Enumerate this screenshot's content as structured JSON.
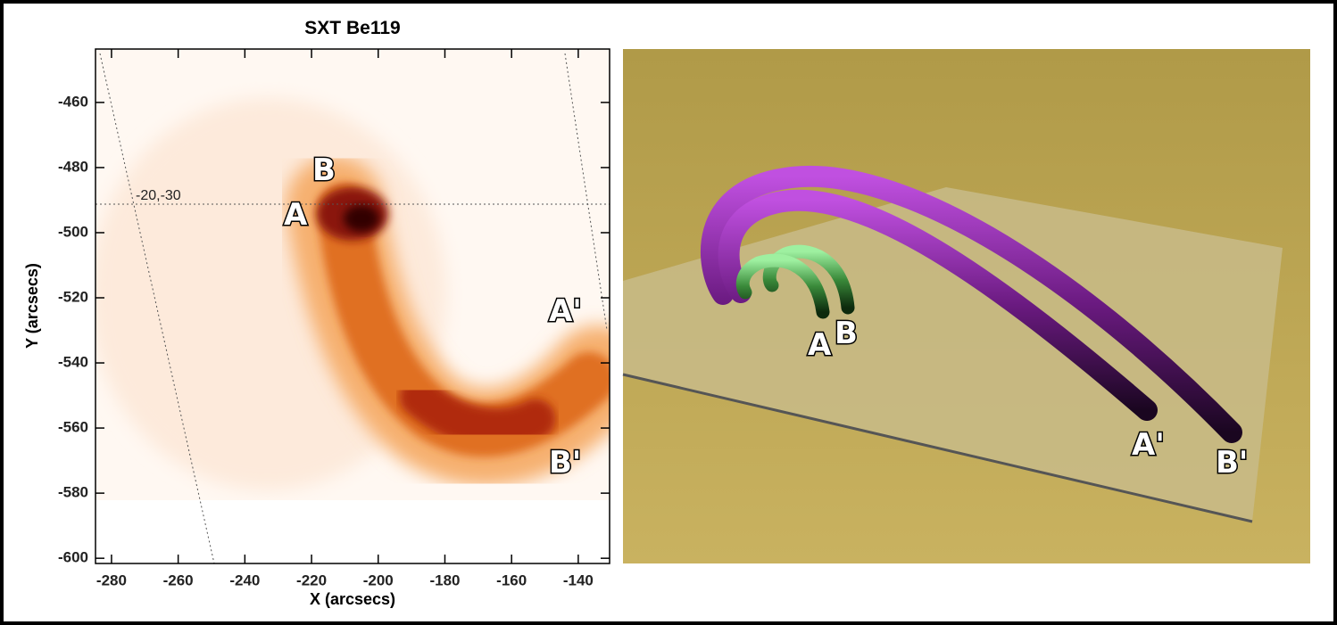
{
  "left_panel": {
    "title": "SXT Be119",
    "x_label": "X (arcsecs)",
    "y_label": "Y (arcsecs)",
    "xlim": [
      -284.8,
      -130.6
    ],
    "ylim": [
      -601.6,
      -443.6
    ],
    "xticks": [
      -280,
      -260,
      -240,
      -220,
      -200,
      -180,
      -160,
      -140
    ],
    "yticks": [
      -600,
      -580,
      -560,
      -540,
      -520,
      -500,
      -480,
      -460
    ],
    "grid_label": "-20,-30",
    "footpoint_labels": [
      "A",
      "B",
      "A'",
      "B'"
    ]
  },
  "right_panel": {
    "footpoint_labels": [
      "A",
      "B",
      "A'",
      "B'"
    ]
  }
}
